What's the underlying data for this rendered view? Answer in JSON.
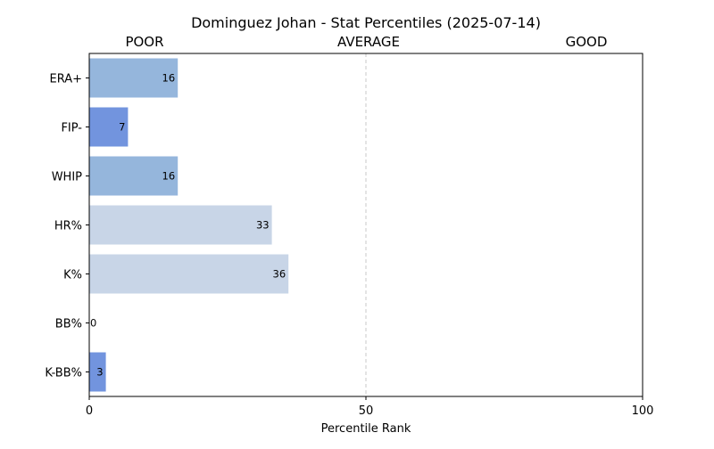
{
  "chart_data": {
    "type": "bar",
    "orientation": "horizontal",
    "title": "Dominguez Johan - Stat Percentiles (2025-07-14)",
    "xlabel": "Percentile Rank",
    "ylabel": "",
    "xlim": [
      0,
      100
    ],
    "xticks": [
      0,
      50,
      100
    ],
    "grid": false,
    "reference_line": 50,
    "zone_labels": [
      "POOR",
      "AVERAGE",
      "GOOD"
    ],
    "categories": [
      "ERA+",
      "FIP-",
      "WHIP",
      "HR%",
      "K%",
      "BB%",
      "K-BB%"
    ],
    "values": [
      16,
      7,
      16,
      33,
      36,
      0,
      3
    ],
    "bar_colors": [
      "#95b6dc",
      "#7294de",
      "#95b6dc",
      "#c8d5e7",
      "#c8d5e7",
      "#7294de",
      "#7294de"
    ]
  }
}
